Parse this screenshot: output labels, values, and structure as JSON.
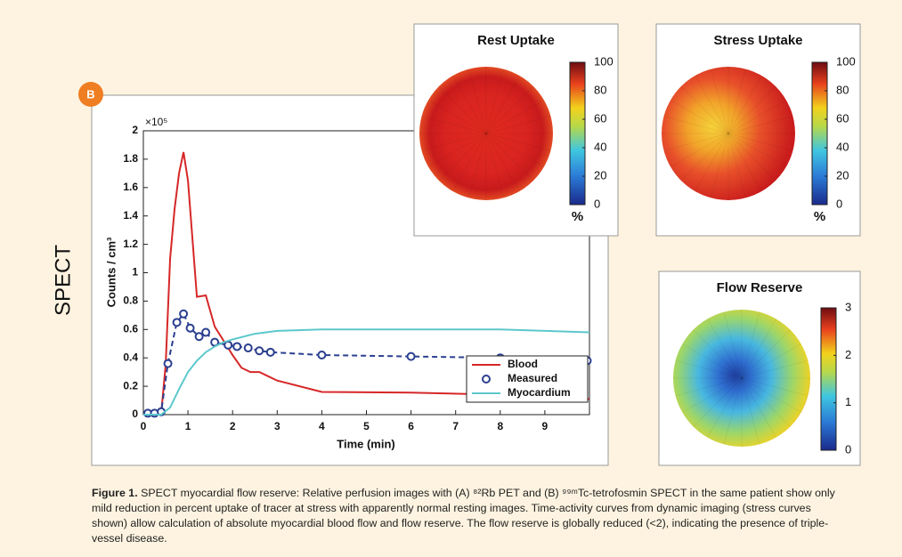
{
  "panel_label": "B",
  "side_label": "SPECT",
  "chart_data": {
    "type": "line",
    "xlabel": "Time (min)",
    "ylabel": "Counts / cm³",
    "y_scale_label": "×10⁵",
    "xlim": [
      0,
      10
    ],
    "xticks": [
      0,
      1,
      2,
      3,
      4,
      5,
      6,
      7,
      8,
      9
    ],
    "ylim": [
      0,
      2
    ],
    "yticks": [
      0,
      0.2,
      0.4,
      0.6,
      0.8,
      1,
      1.2,
      1.4,
      1.6,
      1.8,
      2
    ],
    "legend": "lower right",
    "series": [
      {
        "name": "Blood",
        "color": "#d62728",
        "style": "solid",
        "x": [
          0,
          0.3,
          0.4,
          0.5,
          0.6,
          0.7,
          0.8,
          0.9,
          1.0,
          1.2,
          1.4,
          1.6,
          1.8,
          2.0,
          2.2,
          2.4,
          2.6,
          2.8,
          3,
          4,
          6,
          8,
          10
        ],
        "values": [
          0,
          0,
          0.01,
          0.35,
          1.1,
          1.45,
          1.7,
          1.85,
          1.65,
          0.83,
          0.84,
          0.62,
          0.52,
          0.42,
          0.33,
          0.3,
          0.3,
          0.27,
          0.24,
          0.16,
          0.155,
          0.14,
          0.11
        ]
      },
      {
        "name": "Measured",
        "color": "#2b3f8f",
        "style": "dashed-markers",
        "x": [
          0.1,
          0.25,
          0.4,
          0.55,
          0.75,
          0.9,
          1.05,
          1.25,
          1.4,
          1.6,
          1.9,
          2.1,
          2.35,
          2.6,
          2.85,
          4,
          6,
          8,
          9.95
        ],
        "values": [
          0.01,
          0.01,
          0.02,
          0.36,
          0.65,
          0.71,
          0.61,
          0.55,
          0.58,
          0.51,
          0.49,
          0.48,
          0.47,
          0.45,
          0.44,
          0.42,
          0.41,
          0.4,
          0.38
        ]
      },
      {
        "name": "Myocardium",
        "color": "#5cc8cc",
        "style": "solid",
        "x": [
          0,
          0.4,
          0.6,
          0.8,
          1,
          1.2,
          1.4,
          1.6,
          1.8,
          2,
          2.5,
          3,
          4,
          6,
          8,
          10
        ],
        "values": [
          0,
          0,
          0.05,
          0.18,
          0.3,
          0.38,
          0.44,
          0.48,
          0.51,
          0.53,
          0.57,
          0.59,
          0.6,
          0.6,
          0.6,
          0.58
        ]
      }
    ]
  },
  "polar_maps": [
    {
      "title": "Rest Uptake",
      "clim": [
        0,
        100
      ],
      "colorbar_ticks": [
        0,
        20,
        40,
        60,
        80,
        100
      ],
      "colorbar_unit": "%"
    },
    {
      "title": "Stress Uptake",
      "clim": [
        0,
        100
      ],
      "colorbar_ticks": [
        0,
        20,
        40,
        60,
        80,
        100
      ],
      "colorbar_unit": "%"
    },
    {
      "title": "Flow Reserve",
      "clim": [
        0,
        3
      ],
      "colorbar_ticks": [
        0,
        1,
        2,
        3
      ]
    }
  ],
  "caption": {
    "label": "Figure 1.",
    "text": "SPECT myocardial flow reserve: Relative perfusion images with (A) ⁸²Rb PET and (B) ⁹⁹ᵐTc-tetrofosmin SPECT in the same patient show only mild reduction in percent uptake of tracer at stress with apparently normal resting images.  Time-activity curves from dynamic imaging (stress curves shown) allow calculation of absolute myocardial blood flow and flow reserve. The flow reserve is globally reduced (<2), indicating the presence of triple-vessel disease."
  }
}
